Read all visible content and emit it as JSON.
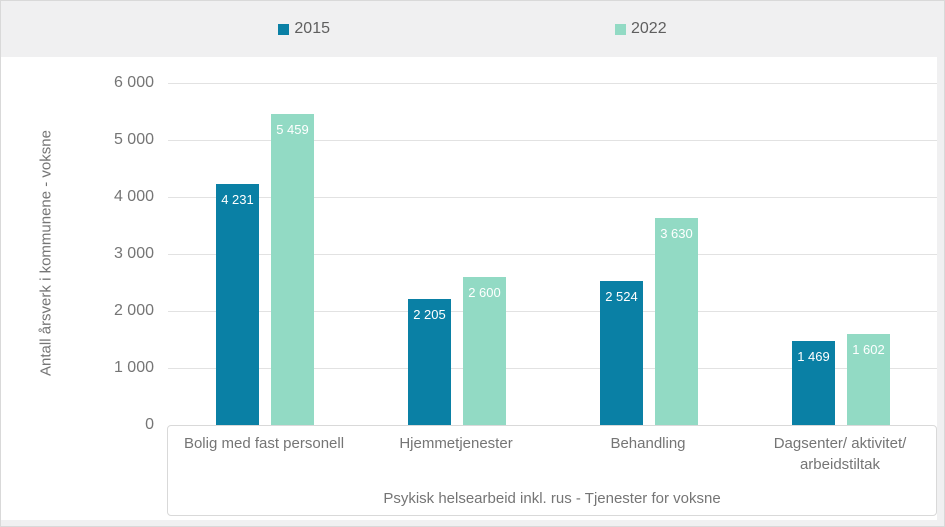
{
  "chart_data": {
    "type": "bar",
    "title": "",
    "ylabel": "Antall årsverk i kommunene - voksne",
    "xlabel": "Psykisk helsearbeid inkl. rus - Tjenester for voksne",
    "categories": [
      "Bolig med fast personell",
      "Hjemmetjenester",
      "Behandling",
      "Dagsenter/ aktivitet/ arbeidstiltak"
    ],
    "series": [
      {
        "name": "2015",
        "color": "#0a80a5",
        "values": [
          4231,
          2205,
          2524,
          1469
        ],
        "labels": [
          "4 231",
          "2 205",
          "2 524",
          "1 469"
        ]
      },
      {
        "name": "2022",
        "color": "#92dac4",
        "values": [
          5459,
          2600,
          3630,
          1602
        ],
        "labels": [
          "5 459",
          "2 600",
          "3 630",
          "1 602"
        ]
      }
    ],
    "ylim": [
      0,
      6000
    ],
    "yticks": [
      {
        "value": 6000,
        "label": "6 000"
      },
      {
        "value": 5000,
        "label": "5 000"
      },
      {
        "value": 4000,
        "label": "4 000"
      },
      {
        "value": 3000,
        "label": "3 000"
      },
      {
        "value": 2000,
        "label": "2 000"
      },
      {
        "value": 1000,
        "label": "1 000"
      },
      {
        "value": 0,
        "label": "0"
      }
    ],
    "grid": true,
    "legend_position": "top",
    "value_label_color": "#ffffff"
  },
  "colors": {
    "band_background": "#f0f0f1",
    "plot_background": "#ffffff",
    "gridline": "#e2e2e2",
    "box_border": "#d9d9d9",
    "axis_text": "#757575",
    "legend_text": "#5f5f5f"
  }
}
